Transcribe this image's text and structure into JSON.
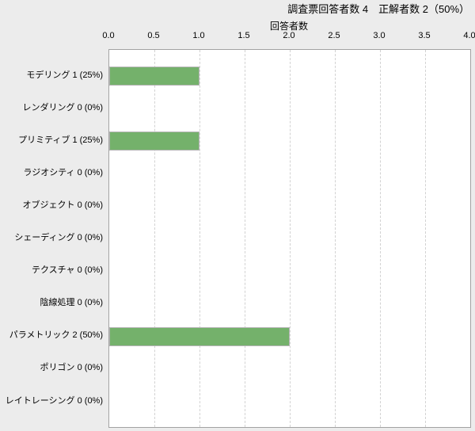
{
  "header": {
    "title": "調査票回答者数 4　正解者数 2（50%）"
  },
  "chart_data": {
    "type": "bar",
    "orientation": "horizontal",
    "title": "調査票回答者数 4　正解者数 2（50%）",
    "xlabel": "回答者数",
    "categories": [
      "モデリング",
      "レンダリング",
      "プリミティブ",
      "ラジオシティ",
      "オブジェクト",
      "シェーディング",
      "テクスチャ",
      "陰線処理",
      "パラメトリック",
      "ポリゴン",
      "レイトレーシング"
    ],
    "values": [
      1,
      0,
      1,
      0,
      0,
      0,
      0,
      0,
      2,
      0,
      0
    ],
    "category_labels": [
      "モデリング 1 (25%)",
      "レンダリング 0 (0%)",
      "プリミティブ 1 (25%)",
      "ラジオシティ 0 (0%)",
      "オブジェクト 0 (0%)",
      "シェーディング 0 (0%)",
      "テクスチャ 0 (0%)",
      "陰線処理 0 (0%)",
      "パラメトリック 2 (50%)",
      "ポリゴン 0 (0%)",
      "レイトレーシング 0 (0%)"
    ],
    "xlim": [
      0,
      4
    ],
    "xticks": [
      "0.0",
      "0.5",
      "1.0",
      "1.5",
      "2.0",
      "2.5",
      "3.0",
      "3.5",
      "4.0"
    ],
    "grid": "vertical-dashed",
    "legend": "none"
  },
  "colors": {
    "background": "#ececec",
    "plot_background": "#ffffff",
    "plot_border": "#a3a3a3",
    "gridline": "#d2d2d2",
    "bar_fill": "#74b16b",
    "bar_border": "#b5b5b5",
    "text": "#000000"
  }
}
